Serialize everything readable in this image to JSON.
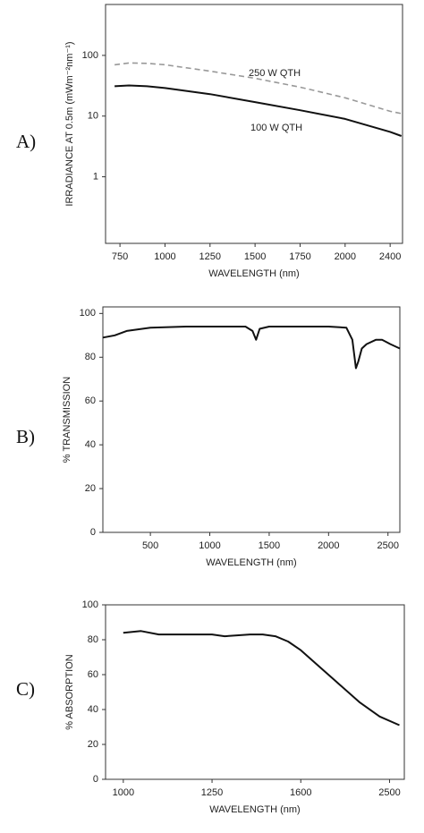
{
  "chart_data": [
    {
      "type": "line",
      "panel_label": "A)",
      "xlabel": "WAVELENGTH (nm)",
      "ylabel": "IRRADIANCE AT 0.5m (mWm⁻²nm⁻¹)",
      "x_scale": "piecewise",
      "y_scale": "log",
      "xlim": [
        670,
        2510
      ],
      "ylim": [
        0.08,
        690
      ],
      "xticks": [
        750,
        1000,
        1250,
        1500,
        1750,
        2000,
        2400
      ],
      "yticks": [
        1,
        10,
        100
      ],
      "x": [
        720,
        800,
        900,
        1000,
        1250,
        1500,
        1750,
        2000,
        2400,
        2500
      ],
      "series": [
        {
          "name": "250 W QTH",
          "color": "#999999",
          "dashed": true,
          "values": [
            70,
            75,
            74,
            70,
            55,
            42,
            30,
            20,
            12,
            11
          ]
        },
        {
          "name": "100  W QTH",
          "color": "#111111",
          "dashed": false,
          "values": [
            31,
            32,
            31,
            29,
            23,
            17,
            12.5,
            9,
            5.5,
            4.7
          ]
        }
      ]
    },
    {
      "type": "line",
      "panel_label": "B)",
      "xlabel": "WAVELENGTH (nm)",
      "ylabel": "% TRANSMISSION",
      "x_scale": "linear",
      "y_scale": "linear",
      "xlim": [
        100,
        2600
      ],
      "ylim": [
        0,
        103
      ],
      "xticks": [
        500,
        1000,
        1500,
        2000,
        2500
      ],
      "yticks": [
        0,
        20,
        40,
        60,
        80,
        100
      ],
      "x": [
        100,
        200,
        300,
        500,
        800,
        1000,
        1300,
        1360,
        1390,
        1420,
        1500,
        2000,
        2150,
        2200,
        2230,
        2250,
        2280,
        2320,
        2400,
        2450,
        2520,
        2600
      ],
      "series": [
        {
          "color": "#111111",
          "dashed": false,
          "values": [
            89,
            90,
            92,
            93.5,
            94,
            94,
            94,
            92,
            88,
            93,
            94,
            94,
            93.5,
            88,
            75,
            78,
            84,
            86,
            88,
            88,
            86,
            84
          ]
        }
      ]
    },
    {
      "type": "line",
      "panel_label": "C)",
      "xlabel": "WAVELENGTH (nm)",
      "ylabel": "% ABSORPTION",
      "x_scale": "piecewise",
      "y_scale": "linear",
      "xlim": [
        950,
        2650
      ],
      "ylim": [
        0,
        100
      ],
      "xticks": [
        1000,
        1250,
        1600,
        2500
      ],
      "yticks": [
        0,
        20,
        40,
        60,
        80,
        100
      ],
      "x": [
        1000,
        1050,
        1100,
        1250,
        1300,
        1400,
        1450,
        1500,
        1550,
        1600,
        1800,
        2000,
        2200,
        2400,
        2600
      ],
      "series": [
        {
          "color": "#111111",
          "dashed": false,
          "values": [
            84,
            85,
            83,
            83,
            82,
            83,
            83,
            82,
            79,
            74,
            64,
            54,
            44,
            36,
            31
          ]
        }
      ]
    }
  ]
}
